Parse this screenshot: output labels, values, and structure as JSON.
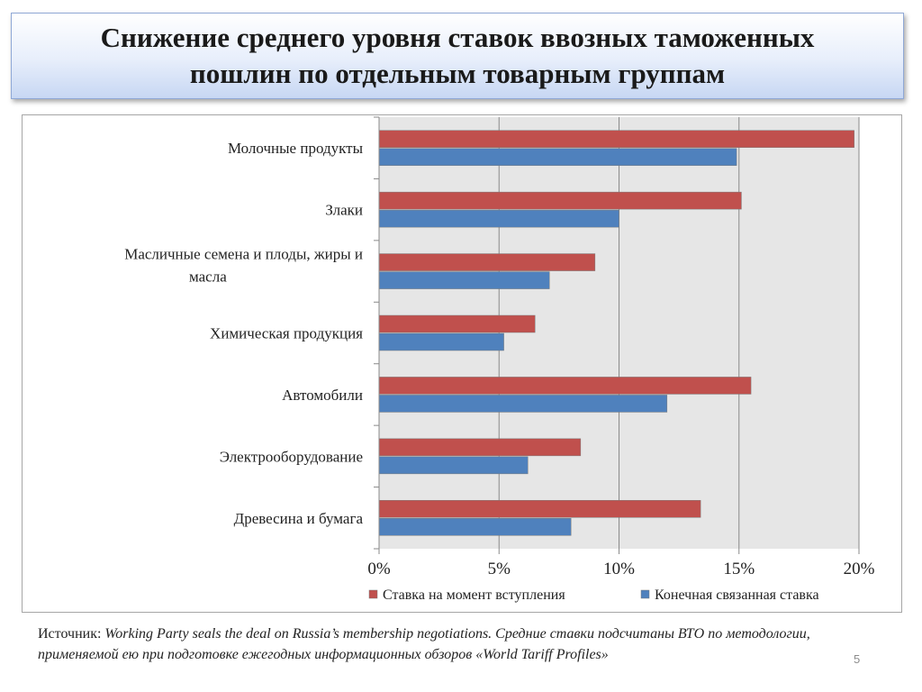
{
  "slide": {
    "title_line1": "Снижение среднего уровня ставок ввозных таможенных",
    "title_line2": "пошлин по отдельным товарным группам",
    "source_prefix": "Источник: ",
    "source_italic": "Working Party seals the deal on Russia’s membership negotiations. Средние ставки подсчитаны ВТО по методологии, применяемой ею при подготовке ежегодных информационных обзоров «World Tariff Profiles»",
    "page_number": "5"
  },
  "colors": {
    "series_red": "#c0504d",
    "series_blue": "#4f81bd",
    "plot_background": "#e6e6e6",
    "title_gradient": "#c7d7f3"
  },
  "chart_data": {
    "type": "bar",
    "orientation": "horizontal",
    "title": "",
    "xlabel": "",
    "ylabel": "",
    "categories": [
      [
        "Молочные продукты"
      ],
      [
        "Злаки"
      ],
      [
        "Масличные семена и плоды, жиры и",
        "масла"
      ],
      [
        "Химическая продукция"
      ],
      [
        "Автомобили"
      ],
      [
        "Электрооборудование"
      ],
      [
        "Древесина и бумага"
      ]
    ],
    "series": [
      {
        "name": "Ставка на момент вступления",
        "color": "#c0504d",
        "values": [
          19.8,
          15.1,
          9.0,
          6.5,
          15.5,
          8.4,
          13.4
        ]
      },
      {
        "name": "Конечная связанная ставка",
        "color": "#4f81bd",
        "values": [
          14.9,
          10.0,
          7.1,
          5.2,
          12.0,
          6.2,
          8.0
        ]
      }
    ],
    "xlim": [
      0,
      20
    ],
    "xticks": [
      0,
      5,
      10,
      15,
      20
    ],
    "tick_labels": [
      "0%",
      "5%",
      "10%",
      "15%",
      "20%"
    ],
    "grid": "vertical",
    "legend": "bottom"
  }
}
